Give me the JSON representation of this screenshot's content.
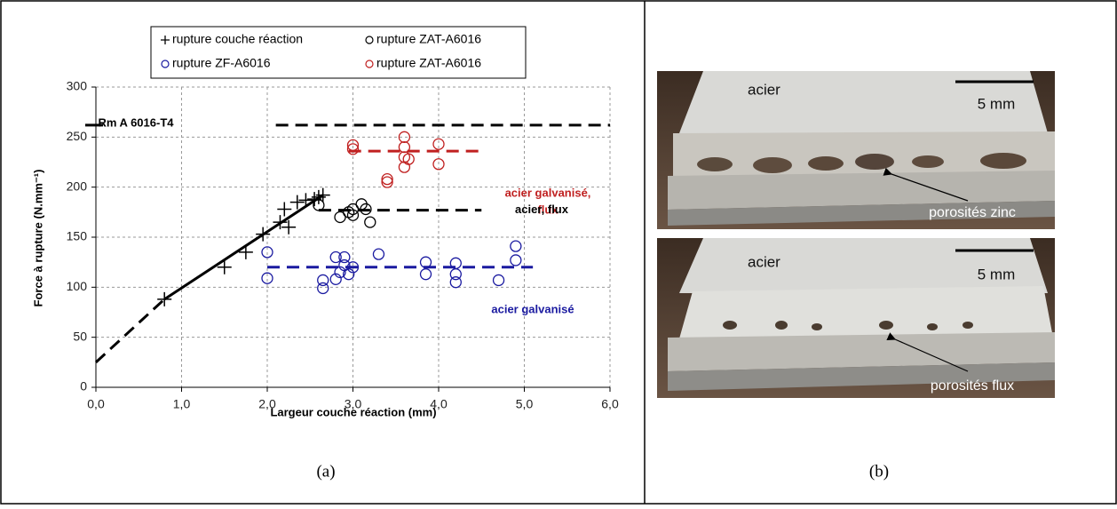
{
  "chart_data": {
    "type": "scatter",
    "xlabel": "Largeur couche réaction (mm)",
    "ylabel": "Force à rupture (N.mm⁻¹)",
    "xlim": [
      0,
      6
    ],
    "ylim": [
      0,
      300
    ],
    "xticks": [
      {
        "value": 0,
        "label": "0,0"
      },
      {
        "value": 1,
        "label": "1,0"
      },
      {
        "value": 2,
        "label": "2,0"
      },
      {
        "value": 3,
        "label": "3,0"
      },
      {
        "value": 4,
        "label": "4,0"
      },
      {
        "value": 5,
        "label": "5,0"
      },
      {
        "value": 6,
        "label": "6,0"
      }
    ],
    "yticks": [
      0,
      50,
      100,
      150,
      200,
      250,
      300
    ],
    "grid": true,
    "series": [
      {
        "name": "rupture couche réaction",
        "color": "#000000",
        "marker": "plus",
        "x": [
          0.8,
          1.5,
          1.75,
          1.95,
          2.15,
          2.2,
          2.25,
          2.35,
          2.45,
          2.55,
          2.6,
          2.65
        ],
        "values": [
          88,
          120,
          135,
          153,
          165,
          178,
          160,
          185,
          187,
          188,
          190,
          192
        ]
      },
      {
        "name": "rupture ZAT-A6016",
        "color": "#000000",
        "marker": "circle",
        "x": [
          2.6,
          2.85,
          2.95,
          3.0,
          3.0,
          3.1,
          3.15,
          3.2
        ],
        "values": [
          182,
          170,
          175,
          172,
          178,
          183,
          178,
          165
        ]
      },
      {
        "name": "rupture ZF-A6016",
        "color": "#1a1aa0",
        "marker": "circle",
        "x": [
          2.0,
          2.0,
          2.65,
          2.65,
          2.8,
          2.8,
          2.85,
          2.9,
          2.9,
          2.95,
          3.0,
          3.3,
          3.85,
          3.85,
          4.2,
          4.2,
          4.2,
          4.7,
          4.9,
          4.9
        ],
        "values": [
          135,
          109,
          107,
          99,
          130,
          108,
          115,
          130,
          122,
          113,
          120,
          133,
          125,
          113,
          124,
          113,
          105,
          107,
          141,
          127
        ]
      },
      {
        "name": "rupture ZAT-A6016",
        "color": "#c02020",
        "marker": "circle",
        "x": [
          3.0,
          3.0,
          3.4,
          3.4,
          3.6,
          3.6,
          3.6,
          3.6,
          3.65,
          4.0,
          4.0
        ],
        "values": [
          242,
          238,
          208,
          205,
          250,
          240,
          230,
          220,
          228,
          243,
          223
        ]
      }
    ],
    "lines": [
      {
        "color": "#000000",
        "dash": true,
        "x": [
          0,
          0.8
        ],
        "values": [
          25,
          88
        ]
      },
      {
        "color": "#000000",
        "dash": false,
        "x": [
          0.8,
          2.65
        ],
        "values": [
          88,
          192
        ]
      },
      {
        "color": "#000000",
        "dash": true,
        "x": [
          2.1,
          6.0
        ],
        "values": [
          262,
          262
        ]
      },
      {
        "color": "#c02020",
        "dash": true,
        "x": [
          2.95,
          4.5
        ],
        "values": [
          236,
          236
        ]
      },
      {
        "color": "#000000",
        "dash": true,
        "x": [
          2.6,
          4.5
        ],
        "values": [
          177,
          177
        ]
      },
      {
        "color": "#1a1aa0",
        "dash": true,
        "x": [
          2.0,
          5.1
        ],
        "values": [
          120,
          120
        ]
      }
    ],
    "annotations": [
      "Rm A 6016-T4",
      "acier galvanisé,",
      "flux",
      "acier, flux",
      "acier galvanisé"
    ]
  },
  "photos": [
    {
      "label": "acier",
      "scale": "5 mm",
      "annotation": "porosités zinc"
    },
    {
      "label": "acier",
      "scale": "5 mm",
      "annotation": "porosités flux"
    }
  ],
  "captions": [
    "(a)",
    "(b)"
  ]
}
